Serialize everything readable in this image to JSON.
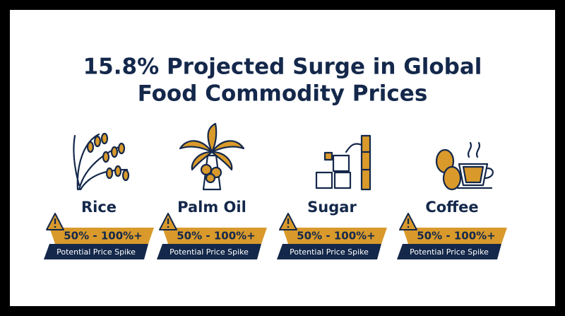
{
  "title": [
    "15.8% Projected Surge in Global",
    "Food Commodity Prices"
  ],
  "items": [
    {
      "name": "Rice",
      "range": "50% - 100%+",
      "note": "Potential Price Spike"
    },
    {
      "name": "Palm Oil",
      "range": "50% - 100%+",
      "note": "Potential Price Spike"
    },
    {
      "name": "Sugar",
      "range": "50% - 100%+",
      "note": "Potential Price Spike"
    },
    {
      "name": "Coffee",
      "range": "50% - 100%+",
      "note": "Potential Price Spike"
    }
  ]
}
